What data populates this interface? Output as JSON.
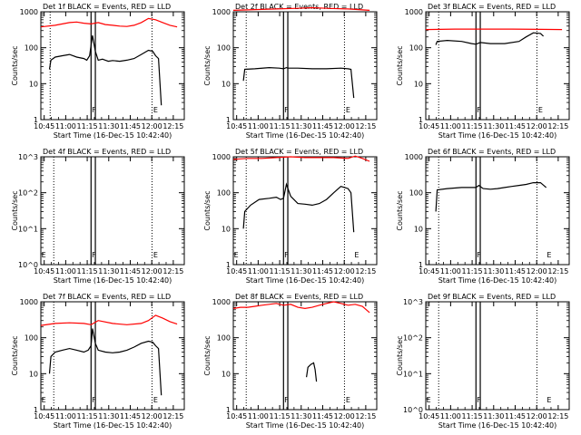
{
  "figure": {
    "xlabel": "Start Time (16-Dec-15 10:42:40)",
    "ylabel": "Counts/sec",
    "xticks": [
      "10:45",
      "11:00",
      "11:15",
      "11:30",
      "11:45",
      "12:00",
      "12:15"
    ],
    "xtick_minutes": [
      2.33,
      17.33,
      32.33,
      47.33,
      62.33,
      77.33,
      92.33
    ],
    "xlim_minutes": [
      0,
      100
    ],
    "ylim": [
      1,
      1000
    ],
    "yticks_dec": [
      "1",
      "10",
      "100",
      "1000"
    ],
    "yticks_exp": [
      "10^0",
      "10^1",
      "10^2",
      "10^3"
    ],
    "ytick_values": [
      1,
      10,
      100,
      1000
    ],
    "colors": {
      "events": "#000000",
      "lld": "#ff0000",
      "axes": "#000000"
    }
  },
  "chart_data": [
    {
      "type": "line",
      "title": "Det 1f BLACK = Events, RED = LLD",
      "ylabel_style": "decimal",
      "markers": {
        "dotted_x": [
          6.5,
          77.5
        ],
        "box_x": [
          35,
          38
        ],
        "labels": [
          {
            "text": "F",
            "x": 37
          },
          {
            "text": "E",
            "x": 80
          }
        ]
      },
      "series": [
        {
          "name": "Events",
          "x": [
            6,
            7,
            10,
            15,
            20,
            25,
            30,
            32,
            34,
            36,
            38,
            40,
            43,
            45,
            47,
            50,
            55,
            60,
            65,
            70,
            75,
            78,
            80,
            82,
            84
          ],
          "y": [
            25,
            45,
            55,
            60,
            65,
            55,
            50,
            45,
            60,
            220,
            80,
            45,
            48,
            45,
            42,
            44,
            42,
            45,
            50,
            65,
            85,
            80,
            60,
            50,
            2.5
          ]
        },
        {
          "name": "LLD",
          "x": [
            0,
            10,
            20,
            25,
            30,
            35,
            40,
            45,
            50,
            55,
            60,
            65,
            70,
            75,
            80,
            85,
            90,
            95
          ],
          "y": [
            380,
            420,
            500,
            520,
            480,
            460,
            500,
            440,
            420,
            400,
            390,
            420,
            500,
            650,
            600,
            500,
            420,
            380
          ]
        }
      ]
    },
    {
      "type": "line",
      "title": "Det 2f BLACK = Events, RED = LLD",
      "ylabel_style": "decimal",
      "markers": {
        "dotted_x": [
          9,
          77.5
        ],
        "box_x": [
          35,
          38
        ],
        "labels": [
          {
            "text": "F",
            "x": 37
          },
          {
            "text": "E",
            "x": 80
          }
        ]
      },
      "series": [
        {
          "name": "Events",
          "x": [
            7,
            8,
            15,
            25,
            32,
            35,
            37,
            38,
            45,
            55,
            65,
            75,
            80,
            82,
            84
          ],
          "y": [
            12,
            25,
            26,
            28,
            27,
            26,
            28,
            27,
            27,
            26,
            26,
            27,
            26,
            25,
            4
          ]
        },
        {
          "name": "LLD",
          "x": [
            0,
            15,
            30,
            45,
            55,
            65,
            80,
            95
          ],
          "y": [
            1100,
            1150,
            1200,
            1250,
            1300,
            1250,
            1200,
            1100
          ]
        }
      ]
    },
    {
      "type": "line",
      "title": "Det 3f BLACK = Events, RED = LLD",
      "ylabel_style": "decimal",
      "markers": {
        "dotted_x": [
          9,
          77.5
        ],
        "box_x": [
          35,
          38
        ],
        "labels": [
          {
            "text": "F",
            "x": 37
          },
          {
            "text": "E",
            "x": 80
          }
        ]
      },
      "series": [
        {
          "name": "Events",
          "x": [
            7,
            8,
            15,
            25,
            32,
            35,
            38,
            45,
            55,
            65,
            70,
            75,
            80,
            82
          ],
          "y": [
            120,
            150,
            160,
            150,
            130,
            125,
            140,
            130,
            130,
            150,
            200,
            260,
            250,
            210
          ]
        },
        {
          "name": "LLD",
          "x": [
            0,
            20,
            40,
            60,
            80,
            95
          ],
          "y": [
            320,
            330,
            330,
            330,
            325,
            320
          ]
        }
      ]
    },
    {
      "type": "line",
      "title": "Det 4f BLACK = Events, RED = LLD",
      "ylabel_style": "exponent",
      "markers": {
        "dotted_x": [
          9,
          77.5
        ],
        "box_x": [
          35,
          38
        ],
        "labels": [
          {
            "text": "E",
            "x": 2
          },
          {
            "text": "F",
            "x": 37
          },
          {
            "text": "E",
            "x": 80
          }
        ]
      },
      "series": []
    },
    {
      "type": "line",
      "title": "Det 5f BLACK = Events, RED = LLD",
      "ylabel_style": "decimal",
      "markers": {
        "dotted_x": [
          9,
          77.5
        ],
        "box_x": [
          35,
          38
        ],
        "labels": [
          {
            "text": "E",
            "x": 2
          },
          {
            "text": "F",
            "x": 37
          },
          {
            "text": "E",
            "x": 86
          }
        ]
      },
      "series": [
        {
          "name": "Events",
          "x": [
            7,
            8,
            12,
            18,
            25,
            30,
            33,
            35,
            37,
            40,
            45,
            50,
            55,
            60,
            65,
            70,
            75,
            80,
            82,
            84
          ],
          "y": [
            10,
            30,
            45,
            65,
            70,
            75,
            65,
            70,
            170,
            80,
            50,
            48,
            45,
            50,
            65,
            100,
            150,
            130,
            100,
            8
          ]
        },
        {
          "name": "LLD",
          "x": [
            0,
            10,
            20,
            30,
            40,
            50,
            60,
            70,
            80,
            85,
            90,
            95
          ],
          "y": [
            850,
            900,
            900,
            950,
            1000,
            950,
            950,
            950,
            900,
            1050,
            900,
            750
          ]
        }
      ]
    },
    {
      "type": "line",
      "title": "Det 6f BLACK = Events, RED = LLD",
      "ylabel_style": "decimal",
      "markers": {
        "dotted_x": [
          9,
          77.5
        ],
        "box_x": [
          35,
          38
        ],
        "labels": [
          {
            "text": "F",
            "x": 37
          },
          {
            "text": "E",
            "x": 86
          }
        ]
      },
      "series": [
        {
          "name": "Events",
          "x": [
            7,
            8,
            15,
            25,
            35,
            37,
            40,
            45,
            50,
            55,
            60,
            65,
            70,
            75,
            80,
            84
          ],
          "y": [
            30,
            120,
            130,
            140,
            140,
            160,
            130,
            125,
            130,
            140,
            150,
            160,
            170,
            190,
            190,
            140
          ]
        }
      ]
    },
    {
      "type": "line",
      "title": "Det 7f BLACK = Events, RED = LLD",
      "ylabel_style": "decimal",
      "markers": {
        "dotted_x": [
          9,
          77.5
        ],
        "box_x": [
          35,
          38
        ],
        "labels": [
          {
            "text": "E",
            "x": 2
          },
          {
            "text": "F",
            "x": 37
          },
          {
            "text": "E",
            "x": 80
          }
        ]
      },
      "series": [
        {
          "name": "Events",
          "x": [
            6,
            7,
            10,
            15,
            20,
            25,
            30,
            33,
            35,
            36,
            38,
            40,
            45,
            50,
            55,
            60,
            65,
            70,
            75,
            78,
            80,
            82,
            84
          ],
          "y": [
            10,
            30,
            40,
            45,
            50,
            45,
            40,
            45,
            60,
            180,
            70,
            45,
            40,
            38,
            40,
            45,
            55,
            70,
            80,
            75,
            60,
            50,
            2.5
          ]
        },
        {
          "name": "LLD",
          "x": [
            0,
            10,
            20,
            30,
            35,
            40,
            50,
            60,
            70,
            75,
            80,
            85,
            90,
            95
          ],
          "y": [
            220,
            250,
            260,
            250,
            230,
            300,
            250,
            230,
            250,
            300,
            420,
            350,
            280,
            240
          ]
        }
      ]
    },
    {
      "type": "line",
      "title": "Det 8f BLACK = Events, RED = LLD",
      "ylabel_style": "decimal",
      "markers": {
        "dotted_x": [
          9,
          77.5
        ],
        "box_x": [
          35,
          38
        ],
        "labels": [
          {
            "text": "F",
            "x": 37
          },
          {
            "text": "E",
            "x": 80
          }
        ]
      },
      "series": [
        {
          "name": "Events",
          "x": [
            51,
            52,
            54,
            56,
            57,
            58
          ],
          "y": [
            8,
            15,
            18,
            20,
            13,
            6
          ]
        },
        {
          "name": "LLD",
          "x": [
            0,
            5,
            10,
            15,
            20,
            25,
            30,
            35,
            40,
            45,
            50,
            55,
            60,
            65,
            70,
            75,
            80,
            85,
            90,
            95
          ],
          "y": [
            650,
            700,
            700,
            750,
            800,
            850,
            900,
            800,
            850,
            700,
            650,
            700,
            800,
            900,
            1000,
            900,
            800,
            850,
            750,
            500
          ]
        }
      ]
    },
    {
      "type": "line",
      "title": "Det 9f BLACK = Events, RED = LLD",
      "ylabel_style": "exponent",
      "markers": {
        "dotted_x": [
          9,
          77.5
        ],
        "box_x": [
          35,
          38
        ],
        "labels": [
          {
            "text": "E",
            "x": 2
          },
          {
            "text": "F",
            "x": 37
          },
          {
            "text": "E",
            "x": 86
          }
        ]
      },
      "series": []
    }
  ]
}
